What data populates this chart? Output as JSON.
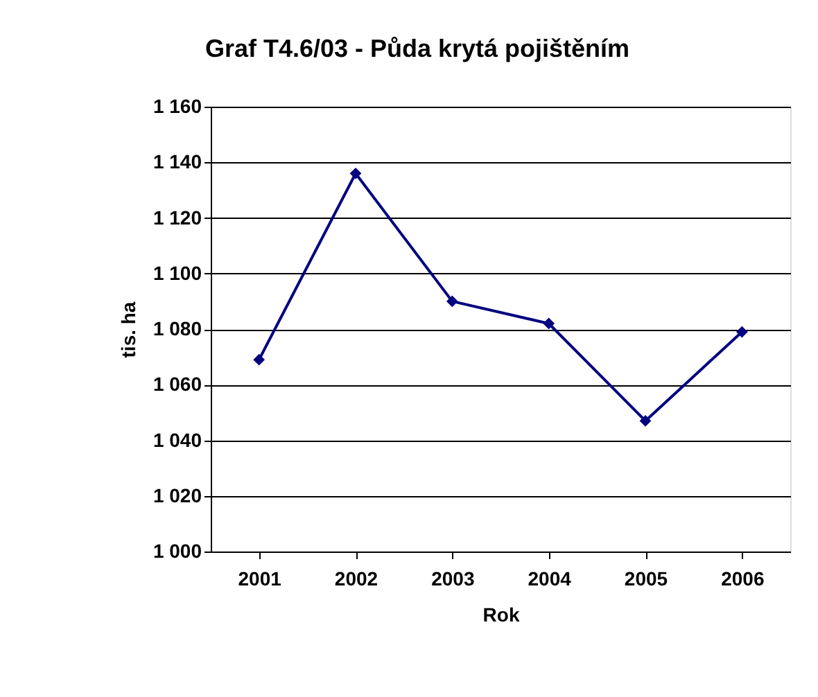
{
  "chart_data": {
    "type": "line",
    "title": "Graf T4.6/03 - Půda krytá pojištěním",
    "xlabel": "Rok",
    "ylabel": "tis. ha",
    "categories": [
      "2001",
      "2002",
      "2003",
      "2004",
      "2005",
      "2006"
    ],
    "series": [
      {
        "color": "#000080",
        "values": [
          1069,
          1136,
          1090,
          1082,
          1047,
          1079
        ]
      }
    ],
    "ylim": [
      1000,
      1160
    ],
    "yticks": [
      {
        "value": 1000,
        "label": "1 000"
      },
      {
        "value": 1020,
        "label": "1 020"
      },
      {
        "value": 1040,
        "label": "1 040"
      },
      {
        "value": 1060,
        "label": "1 060"
      },
      {
        "value": 1080,
        "label": "1 080"
      },
      {
        "value": 1100,
        "label": "1 100"
      },
      {
        "value": 1120,
        "label": "1 120"
      },
      {
        "value": 1140,
        "label": "1 140"
      },
      {
        "value": 1160,
        "label": "1 160"
      }
    ],
    "grid": "y",
    "marker": "diamond",
    "line_style": "solid"
  }
}
